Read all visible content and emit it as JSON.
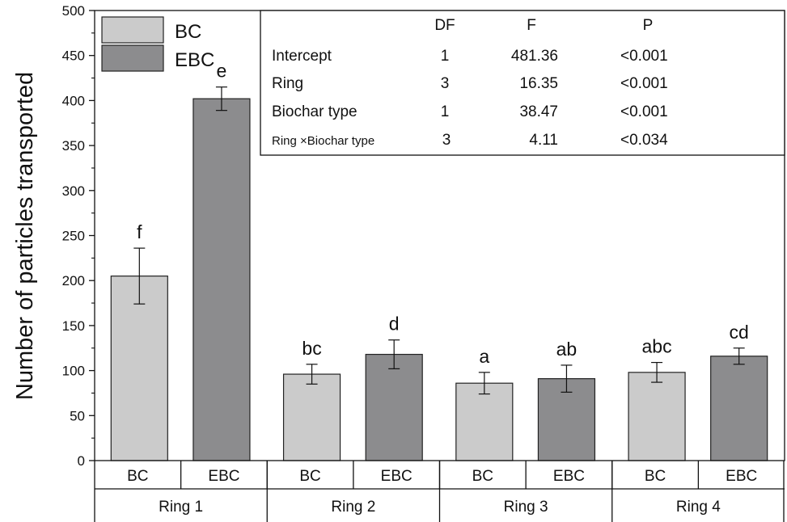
{
  "chart_data": {
    "type": "bar",
    "ylabel": "Number of particles transported",
    "ylim": [
      0,
      500
    ],
    "yticks": [
      0,
      50,
      100,
      150,
      200,
      250,
      300,
      350,
      400,
      450,
      500
    ],
    "groups": [
      "Ring 1",
      "Ring 2",
      "Ring 3",
      "Ring 4"
    ],
    "subcategories": [
      "BC",
      "EBC"
    ],
    "series": [
      {
        "name": "BC",
        "color": "#cbcbcb",
        "values": [
          205,
          96,
          86,
          98
        ],
        "errors": [
          31,
          11,
          12,
          11
        ],
        "letters": [
          "f",
          "bc",
          "a",
          "abc"
        ]
      },
      {
        "name": "EBC",
        "color": "#8c8c8e",
        "values": [
          402,
          118,
          91,
          116
        ],
        "errors": [
          13,
          16,
          15,
          9
        ],
        "letters": [
          "e",
          "d",
          "ab",
          "cd"
        ]
      }
    ],
    "legend": {
      "position": "top-left",
      "entries": [
        "BC",
        "EBC"
      ]
    },
    "anova_table": {
      "headers": [
        "",
        "DF",
        "F",
        "P"
      ],
      "rows": [
        [
          "Intercept",
          "1",
          "481.36",
          "<0.001"
        ],
        [
          "Ring",
          "3",
          "16.35",
          "<0.001"
        ],
        [
          "Biochar type",
          "1",
          "38.47",
          "<0.001"
        ],
        [
          "Ring ×Biochar type",
          "3",
          "4.11",
          "<0.034"
        ]
      ]
    }
  }
}
